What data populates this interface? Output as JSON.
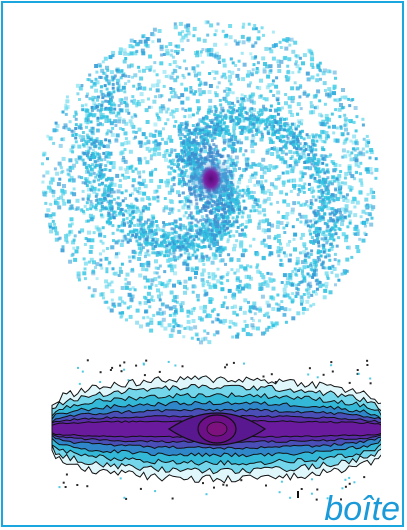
{
  "caption": "boîte",
  "colors": {
    "frame": "#1aa7e0",
    "disk": "#35c9e4",
    "core": "#5b0a7a",
    "caption": "#1a9ad8"
  },
  "images": {
    "face_on": "face-on-galaxy-simulation",
    "edge_on": "edge-on-galaxy-density-contours"
  }
}
